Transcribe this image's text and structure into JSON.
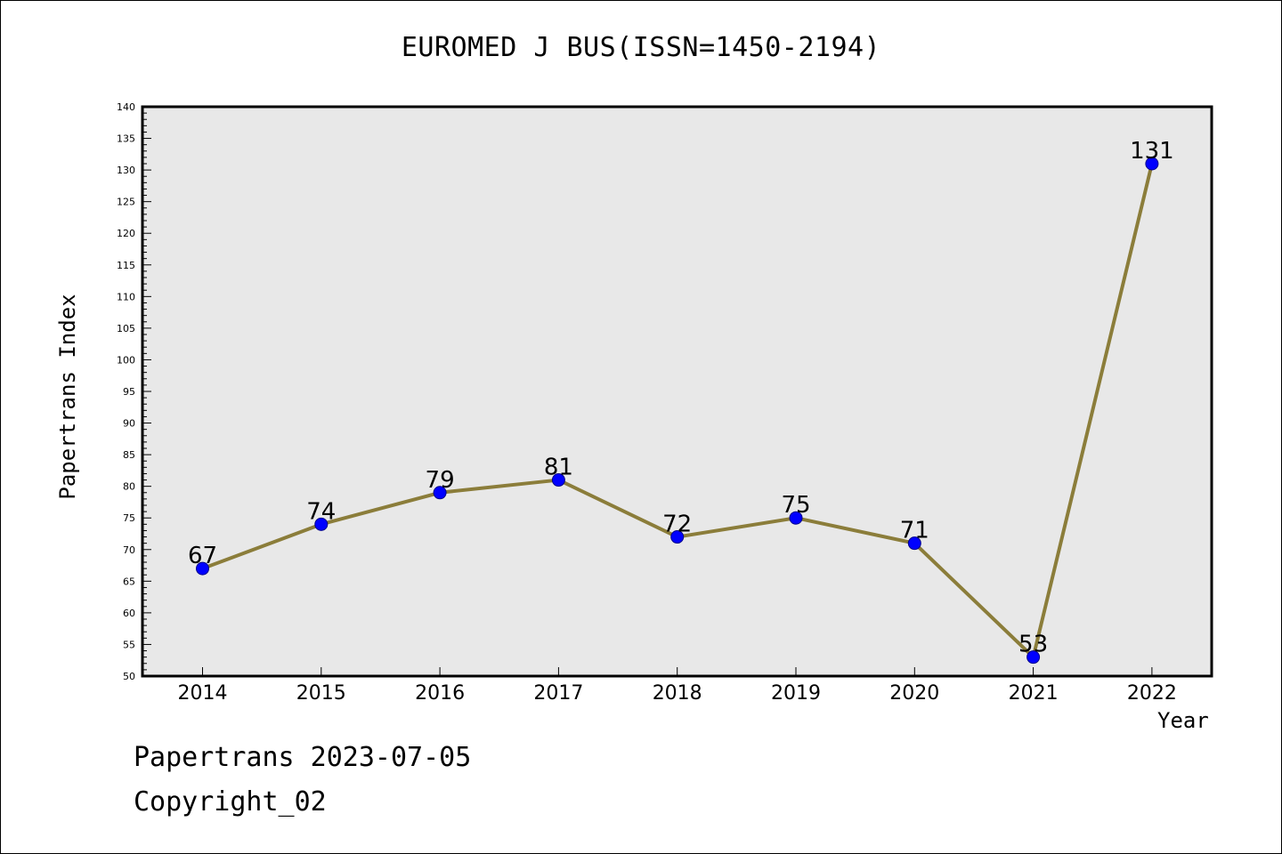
{
  "chart_data": {
    "type": "line",
    "title": "EUROMED J BUS(ISSN=1450-2194)",
    "xlabel": "Year",
    "ylabel": "Papertrans Index",
    "categories": [
      "2014",
      "2015",
      "2016",
      "2017",
      "2018",
      "2019",
      "2020",
      "2021",
      "2022"
    ],
    "values": [
      67,
      74,
      79,
      81,
      72,
      75,
      71,
      53,
      131
    ],
    "data_labels": [
      "67",
      "74",
      "79",
      "81",
      "72",
      "75",
      "71",
      "53",
      "131"
    ],
    "ylim": [
      50,
      140
    ],
    "yticks": [
      50,
      55,
      60,
      65,
      70,
      75,
      80,
      85,
      90,
      95,
      100,
      105,
      110,
      115,
      120,
      125,
      130,
      135,
      140
    ],
    "grid": false,
    "legend": "none",
    "colors": {
      "line": "#8B7D3A",
      "marker": "#0000FF",
      "plot_background": "#E8E8E8"
    }
  },
  "footer": {
    "date_line": "Papertrans 2023-07-05",
    "copyright_line": "Copyright_02"
  }
}
